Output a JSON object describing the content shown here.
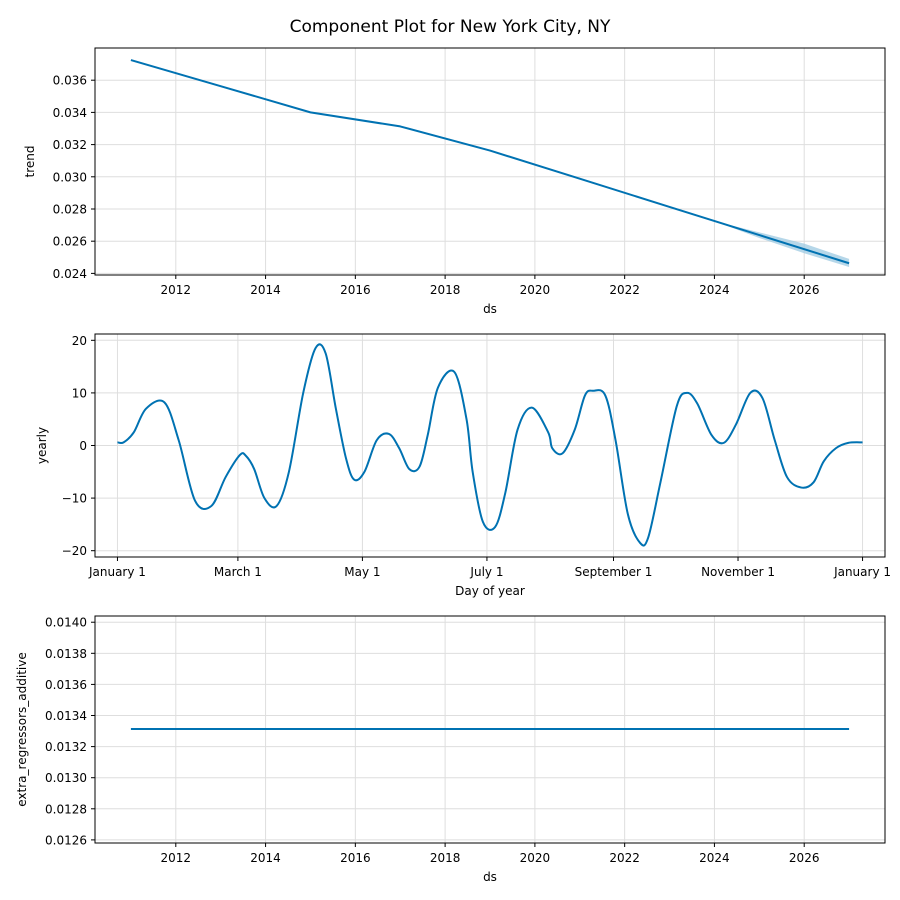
{
  "figure": {
    "title": "Component Plot for New York City, NY"
  },
  "colors": {
    "line": "#0072b2",
    "band": "#9ecae1",
    "grid": "#dedede"
  },
  "chart_data": [
    {
      "type": "line",
      "panel": "trend",
      "xlabel": "ds",
      "ylabel": "trend",
      "x_kind": "year",
      "xlim": [
        2010.2,
        2027.8
      ],
      "ylim": [
        0.0239,
        0.038
      ],
      "xticks": [
        2012,
        2014,
        2016,
        2018,
        2020,
        2022,
        2024,
        2026
      ],
      "xtick_labels": [
        "2012",
        "2014",
        "2016",
        "2018",
        "2020",
        "2022",
        "2024",
        "2026"
      ],
      "yticks": [
        0.024,
        0.026,
        0.028,
        0.03,
        0.032,
        0.034,
        0.036
      ],
      "ytick_labels": [
        "0.024",
        "0.026",
        "0.028",
        "0.030",
        "0.032",
        "0.034",
        "0.036"
      ],
      "grid": true,
      "series": [
        {
          "x": [
            2011,
            2013,
            2015,
            2017,
            2019,
            2021,
            2023,
            2025,
            2027
          ],
          "y": [
            0.03725,
            0.03563,
            0.034,
            0.03313,
            0.03163,
            0.02988,
            0.02813,
            0.02638,
            0.02463
          ]
        }
      ],
      "uncertainty_band": {
        "x": [
          2024,
          2025,
          2026,
          2027
        ],
        "lower": [
          0.02725,
          0.0262,
          0.02525,
          0.0244
        ],
        "upper": [
          0.02725,
          0.02655,
          0.02585,
          0.0249
        ]
      }
    },
    {
      "type": "line",
      "panel": "yearly",
      "xlabel": "Day of year",
      "ylabel": "yearly",
      "x_kind": "day",
      "xlim": [
        -11,
        376
      ],
      "ylim": [
        -21.2,
        21.2
      ],
      "xticks": [
        0,
        59,
        120,
        181,
        243,
        304,
        365
      ],
      "xtick_labels": [
        "January 1",
        "March 1",
        "May 1",
        "July 1",
        "September 1",
        "November 1",
        "January 1"
      ],
      "yticks": [
        -20,
        -10,
        0,
        10,
        20
      ],
      "ytick_labels": [
        "−20",
        "−10",
        "0",
        "10",
        "20"
      ],
      "grid": true,
      "series": [
        {
          "x": [
            0,
            3,
            8,
            14,
            23,
            30,
            38,
            46,
            53,
            60,
            63,
            67,
            72,
            78,
            84,
            91,
            97,
            102,
            107,
            112,
            116,
            121,
            127,
            133,
            138,
            143,
            148,
            152,
            157,
            165,
            171,
            174,
            179,
            185,
            190,
            196,
            203,
            211,
            213,
            218,
            224,
            229,
            233,
            239,
            244,
            250,
            256,
            260,
            266,
            274,
            279,
            284,
            291,
            297,
            303,
            310,
            316,
            322,
            328,
            335,
            341,
            346,
            352,
            358,
            365
          ],
          "y": [
            0.6,
            0.6,
            2.5,
            7.0,
            8.2,
            1.0,
            -10.5,
            -11.5,
            -6.0,
            -1.8,
            -2.0,
            -4.5,
            -10.0,
            -11.5,
            -5.0,
            10.0,
            18.5,
            17.5,
            7.0,
            -2.5,
            -6.5,
            -5.0,
            1.0,
            2.2,
            -0.5,
            -4.5,
            -4.0,
            2.0,
            11.0,
            14.0,
            5.0,
            -5.0,
            -14.5,
            -15.5,
            -9.0,
            3.0,
            7.2,
            2.5,
            -0.5,
            -1.5,
            3.0,
            9.5,
            10.4,
            9.5,
            1.0,
            -13.0,
            -18.5,
            -17.5,
            -7.0,
            7.5,
            10.0,
            8.0,
            2.0,
            0.5,
            4.0,
            10.0,
            9.0,
            1.0,
            -6.0,
            -8.0,
            -7.0,
            -3.0,
            -0.5,
            0.5,
            0.6
          ]
        }
      ]
    },
    {
      "type": "line",
      "panel": "extra_regressors_additive",
      "xlabel": "ds",
      "ylabel": "extra_regressors_additive",
      "x_kind": "year",
      "xlim": [
        2010.2,
        2027.8
      ],
      "ylim": [
        0.01258,
        0.01404
      ],
      "xticks": [
        2012,
        2014,
        2016,
        2018,
        2020,
        2022,
        2024,
        2026
      ],
      "xtick_labels": [
        "2012",
        "2014",
        "2016",
        "2018",
        "2020",
        "2022",
        "2024",
        "2026"
      ],
      "yticks": [
        0.0126,
        0.0128,
        0.013,
        0.0132,
        0.0134,
        0.0136,
        0.0138,
        0.014
      ],
      "ytick_labels": [
        "0.0126",
        "0.0128",
        "0.0130",
        "0.0132",
        "0.0134",
        "0.0136",
        "0.0138",
        "0.0140"
      ],
      "grid": true,
      "series": [
        {
          "x": [
            2011,
            2027
          ],
          "y": [
            0.013313,
            0.013313
          ]
        }
      ]
    }
  ]
}
